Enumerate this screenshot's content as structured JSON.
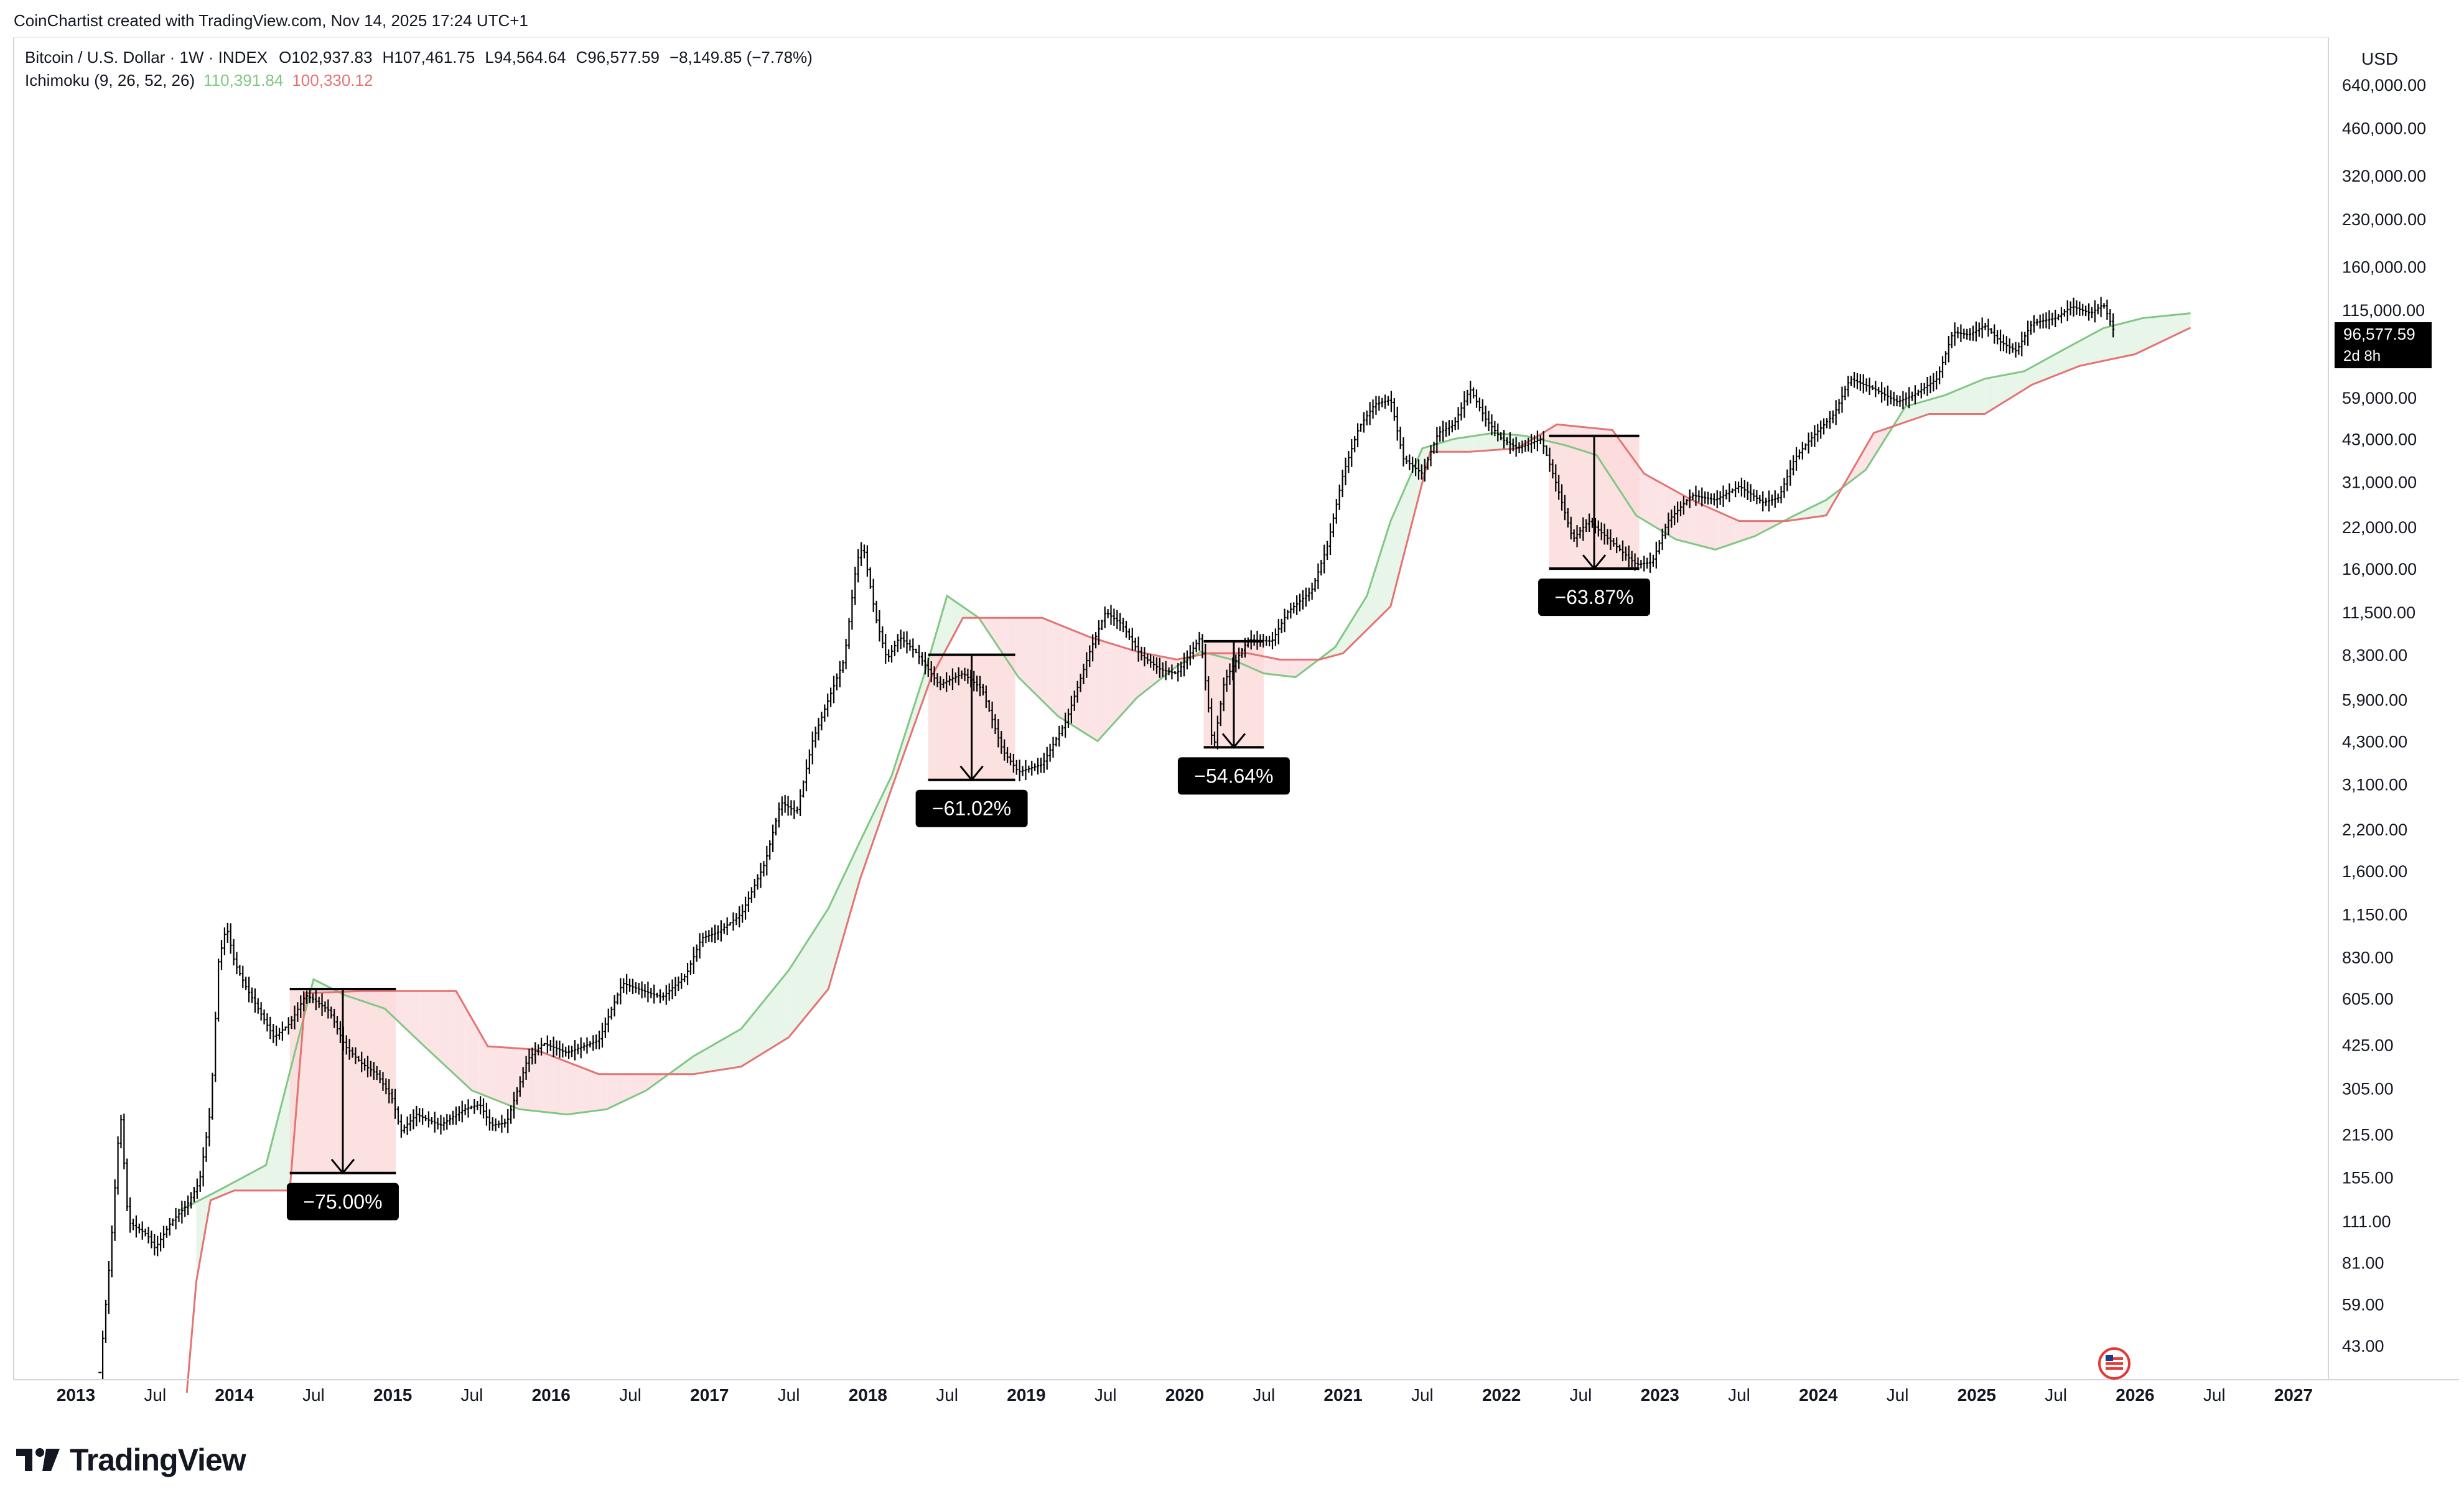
{
  "attribution": "CoinChartist created with TradingView.com, Nov 14, 2025 17:24 UTC+1",
  "brand": {
    "name": "TradingView"
  },
  "legend": {
    "symbol": "Bitcoin / U.S. Dollar · 1W · INDEX",
    "open_label": "O",
    "open": "102,937.83",
    "high_label": "H",
    "high": "107,461.75",
    "low_label": "L",
    "low": "94,564.64",
    "close_label": "C",
    "close": "96,577.59",
    "change": "−8,149.85 (−7.78%)",
    "indicator": "Ichimoku (9, 26, 52, 26)",
    "indicator_value_1": "110,391.84",
    "indicator_value_2": "100,330.12"
  },
  "price_tag": {
    "value": "96,577.59",
    "countdown": "2d 8h"
  },
  "colors": {
    "candle": "#000000",
    "span_a": "#81c784",
    "span_b": "#e57373",
    "cloud_green": "#e8f5e9",
    "cloud_red": "#fce4e6",
    "drawdown_box": "#fbdada",
    "label_bg": "#000000",
    "label_text": "#ffffff",
    "axis_text": "#131722"
  },
  "chart_data": {
    "type": "line",
    "title": "Bitcoin / U.S. Dollar · 1W · INDEX",
    "y_scale": "log",
    "currency": "USD",
    "y_ticks": [
      "640,000.00",
      "460,000.00",
      "320,000.00",
      "230,000.00",
      "160,000.00",
      "115,000.00",
      "59,000.00",
      "43,000.00",
      "31,000.00",
      "22,000.00",
      "16,000.00",
      "11,500.00",
      "8,300.00",
      "5,900.00",
      "4,300.00",
      "3,100.00",
      "2,200.00",
      "1,600.00",
      "1,150.00",
      "830.00",
      "605.00",
      "425.00",
      "305.00",
      "215.00",
      "155.00",
      "111.00",
      "81.00",
      "59.00",
      "43.00"
    ],
    "x_ticks": [
      {
        "label": "2013",
        "year": true,
        "t": 2013.0
      },
      {
        "label": "Jul",
        "year": false,
        "t": 2013.5
      },
      {
        "label": "2014",
        "year": true,
        "t": 2014.0
      },
      {
        "label": "Jul",
        "year": false,
        "t": 2014.5
      },
      {
        "label": "2015",
        "year": true,
        "t": 2015.0
      },
      {
        "label": "Jul",
        "year": false,
        "t": 2015.5
      },
      {
        "label": "2016",
        "year": true,
        "t": 2016.0
      },
      {
        "label": "Jul",
        "year": false,
        "t": 2016.5
      },
      {
        "label": "2017",
        "year": true,
        "t": 2017.0
      },
      {
        "label": "Jul",
        "year": false,
        "t": 2017.5
      },
      {
        "label": "2018",
        "year": true,
        "t": 2018.0
      },
      {
        "label": "Jul",
        "year": false,
        "t": 2018.5
      },
      {
        "label": "2019",
        "year": true,
        "t": 2019.0
      },
      {
        "label": "Jul",
        "year": false,
        "t": 2019.5
      },
      {
        "label": "2020",
        "year": true,
        "t": 2020.0
      },
      {
        "label": "Jul",
        "year": false,
        "t": 2020.5
      },
      {
        "label": "2021",
        "year": true,
        "t": 2021.0
      },
      {
        "label": "Jul",
        "year": false,
        "t": 2021.5
      },
      {
        "label": "2022",
        "year": true,
        "t": 2022.0
      },
      {
        "label": "Jul",
        "year": false,
        "t": 2022.5
      },
      {
        "label": "2023",
        "year": true,
        "t": 2023.0
      },
      {
        "label": "Jul",
        "year": false,
        "t": 2023.5
      },
      {
        "label": "2024",
        "year": true,
        "t": 2024.0
      },
      {
        "label": "Jul",
        "year": false,
        "t": 2024.5
      },
      {
        "label": "2025",
        "year": true,
        "t": 2025.0
      },
      {
        "label": "Jul",
        "year": false,
        "t": 2025.5
      },
      {
        "label": "2026",
        "year": true,
        "t": 2026.0
      },
      {
        "label": "Jul",
        "year": false,
        "t": 2026.5
      },
      {
        "label": "2027",
        "year": true,
        "t": 2027.0
      }
    ],
    "series": [
      {
        "kind": "price",
        "points": [
          [
            2013.15,
            35
          ],
          [
            2013.22,
            90
          ],
          [
            2013.28,
            260
          ],
          [
            2013.33,
            110
          ],
          [
            2013.45,
            100
          ],
          [
            2013.5,
            90
          ],
          [
            2013.6,
            110
          ],
          [
            2013.7,
            125
          ],
          [
            2013.78,
            150
          ],
          [
            2013.85,
            260
          ],
          [
            2013.9,
            800
          ],
          [
            2013.95,
            1050
          ],
          [
            2014.0,
            800
          ],
          [
            2014.08,
            650
          ],
          [
            2014.15,
            560
          ],
          [
            2014.25,
            450
          ],
          [
            2014.35,
            500
          ],
          [
            2014.45,
            620
          ],
          [
            2014.5,
            600
          ],
          [
            2014.6,
            550
          ],
          [
            2014.7,
            420
          ],
          [
            2014.8,
            370
          ],
          [
            2014.9,
            340
          ],
          [
            2015.0,
            280
          ],
          [
            2015.05,
            220
          ],
          [
            2015.15,
            250
          ],
          [
            2015.3,
            230
          ],
          [
            2015.45,
            260
          ],
          [
            2015.55,
            270
          ],
          [
            2015.62,
            230
          ],
          [
            2015.72,
            235
          ],
          [
            2015.85,
            380
          ],
          [
            2015.95,
            430
          ],
          [
            2016.1,
            400
          ],
          [
            2016.3,
            440
          ],
          [
            2016.45,
            680
          ],
          [
            2016.55,
            650
          ],
          [
            2016.7,
            610
          ],
          [
            2016.85,
            720
          ],
          [
            2016.95,
            960
          ],
          [
            2017.05,
            1000
          ],
          [
            2017.2,
            1150
          ],
          [
            2017.35,
            1700
          ],
          [
            2017.45,
            2700
          ],
          [
            2017.55,
            2500
          ],
          [
            2017.65,
            4300
          ],
          [
            2017.75,
            5900
          ],
          [
            2017.85,
            8000
          ],
          [
            2017.93,
            17000
          ],
          [
            2017.97,
            19000
          ],
          [
            2018.05,
            11000
          ],
          [
            2018.12,
            8000
          ],
          [
            2018.2,
            9500
          ],
          [
            2018.3,
            8500
          ],
          [
            2018.45,
            6600
          ],
          [
            2018.6,
            7200
          ],
          [
            2018.72,
            6400
          ],
          [
            2018.85,
            4000
          ],
          [
            2018.95,
            3400
          ],
          [
            2019.1,
            3600
          ],
          [
            2019.25,
            5000
          ],
          [
            2019.4,
            8500
          ],
          [
            2019.5,
            11500
          ],
          [
            2019.6,
            10500
          ],
          [
            2019.72,
            8300
          ],
          [
            2019.85,
            7400
          ],
          [
            2019.95,
            7200
          ],
          [
            2020.1,
            9500
          ],
          [
            2020.18,
            4000
          ],
          [
            2020.25,
            6800
          ],
          [
            2020.4,
            9300
          ],
          [
            2020.55,
            9200
          ],
          [
            2020.65,
            11500
          ],
          [
            2020.8,
            13500
          ],
          [
            2020.9,
            19000
          ],
          [
            2021.0,
            33000
          ],
          [
            2021.1,
            47000
          ],
          [
            2021.2,
            56000
          ],
          [
            2021.3,
            58000
          ],
          [
            2021.38,
            37000
          ],
          [
            2021.5,
            33000
          ],
          [
            2021.6,
            45000
          ],
          [
            2021.7,
            48000
          ],
          [
            2021.8,
            63000
          ],
          [
            2021.9,
            50000
          ],
          [
            2022.0,
            43000
          ],
          [
            2022.1,
            40000
          ],
          [
            2022.25,
            43000
          ],
          [
            2022.35,
            30000
          ],
          [
            2022.45,
            20000
          ],
          [
            2022.55,
            23000
          ],
          [
            2022.7,
            19500
          ],
          [
            2022.85,
            16500
          ],
          [
            2022.95,
            16800
          ],
          [
            2023.05,
            23000
          ],
          [
            2023.2,
            28000
          ],
          [
            2023.35,
            27000
          ],
          [
            2023.5,
            30000
          ],
          [
            2023.65,
            26500
          ],
          [
            2023.75,
            27500
          ],
          [
            2023.85,
            37000
          ],
          [
            2023.95,
            43000
          ],
          [
            2024.1,
            52000
          ],
          [
            2024.2,
            68000
          ],
          [
            2024.35,
            63000
          ],
          [
            2024.5,
            57000
          ],
          [
            2024.6,
            60000
          ],
          [
            2024.75,
            68000
          ],
          [
            2024.85,
            97000
          ],
          [
            2024.95,
            95000
          ],
          [
            2025.05,
            102000
          ],
          [
            2025.15,
            90000
          ],
          [
            2025.25,
            84000
          ],
          [
            2025.35,
            104000
          ],
          [
            2025.5,
            108000
          ],
          [
            2025.6,
            118000
          ],
          [
            2025.72,
            112000
          ],
          [
            2025.8,
            120000
          ],
          [
            2025.87,
            96577.59
          ]
        ]
      },
      {
        "kind": "span_a",
        "name": "Ichimoku Span A",
        "points": [
          [
            2013.65,
            120
          ],
          [
            2013.9,
            140
          ],
          [
            2014.2,
            170
          ],
          [
            2014.5,
            700
          ],
          [
            2014.7,
            620
          ],
          [
            2014.95,
            560
          ],
          [
            2015.2,
            420
          ],
          [
            2015.5,
            300
          ],
          [
            2015.8,
            260
          ],
          [
            2016.1,
            250
          ],
          [
            2016.35,
            260
          ],
          [
            2016.6,
            300
          ],
          [
            2016.9,
            390
          ],
          [
            2017.2,
            480
          ],
          [
            2017.5,
            750
          ],
          [
            2017.75,
            1200
          ],
          [
            2017.95,
            2000
          ],
          [
            2018.15,
            3300
          ],
          [
            2018.35,
            7000
          ],
          [
            2018.5,
            13000
          ],
          [
            2018.7,
            11000
          ],
          [
            2018.95,
            7000
          ],
          [
            2019.2,
            5200
          ],
          [
            2019.45,
            4300
          ],
          [
            2019.7,
            6000
          ],
          [
            2019.95,
            7600
          ],
          [
            2020.1,
            8500
          ],
          [
            2020.3,
            8000
          ],
          [
            2020.5,
            7200
          ],
          [
            2020.7,
            7000
          ],
          [
            2020.95,
            8800
          ],
          [
            2021.15,
            13000
          ],
          [
            2021.3,
            23000
          ],
          [
            2021.5,
            40000
          ],
          [
            2021.7,
            43000
          ],
          [
            2021.95,
            45000
          ],
          [
            2022.15,
            44000
          ],
          [
            2022.4,
            41000
          ],
          [
            2022.6,
            38000
          ],
          [
            2022.85,
            24000
          ],
          [
            2023.1,
            20000
          ],
          [
            2023.35,
            18500
          ],
          [
            2023.6,
            20500
          ],
          [
            2023.85,
            24000
          ],
          [
            2024.05,
            27000
          ],
          [
            2024.3,
            34000
          ],
          [
            2024.55,
            55000
          ],
          [
            2024.8,
            60000
          ],
          [
            2025.05,
            68000
          ],
          [
            2025.3,
            72000
          ],
          [
            2025.55,
            85000
          ],
          [
            2025.8,
            100000
          ],
          [
            2026.05,
            108000
          ],
          [
            2026.35,
            112000
          ]
        ]
      },
      {
        "kind": "span_b",
        "name": "Ichimoku Span B",
        "points": [
          [
            2013.7,
            30
          ],
          [
            2013.76,
            70
          ],
          [
            2013.85,
            130
          ],
          [
            2014.0,
            140
          ],
          [
            2014.35,
            140
          ],
          [
            2014.45,
            630
          ],
          [
            2014.8,
            640
          ],
          [
            2015.1,
            640
          ],
          [
            2015.4,
            640
          ],
          [
            2015.6,
            420
          ],
          [
            2015.9,
            410
          ],
          [
            2016.3,
            340
          ],
          [
            2016.6,
            340
          ],
          [
            2016.9,
            340
          ],
          [
            2017.2,
            360
          ],
          [
            2017.5,
            450
          ],
          [
            2017.75,
            650
          ],
          [
            2017.95,
            1500
          ],
          [
            2018.15,
            3000
          ],
          [
            2018.4,
            7000
          ],
          [
            2018.6,
            11000
          ],
          [
            2019.1,
            11000
          ],
          [
            2019.4,
            9500
          ],
          [
            2019.7,
            8500
          ],
          [
            2019.95,
            8000
          ],
          [
            2020.15,
            8400
          ],
          [
            2020.4,
            8400
          ],
          [
            2020.6,
            8000
          ],
          [
            2020.85,
            8000
          ],
          [
            2021.0,
            8400
          ],
          [
            2021.3,
            12000
          ],
          [
            2021.55,
            39000
          ],
          [
            2021.8,
            39000
          ],
          [
            2022.1,
            40000
          ],
          [
            2022.35,
            48000
          ],
          [
            2022.7,
            46000
          ],
          [
            2022.9,
            33000
          ],
          [
            2023.2,
            27000
          ],
          [
            2023.5,
            23000
          ],
          [
            2023.8,
            23000
          ],
          [
            2024.05,
            24000
          ],
          [
            2024.35,
            45000
          ],
          [
            2024.7,
            52000
          ],
          [
            2025.05,
            52000
          ],
          [
            2025.35,
            65000
          ],
          [
            2025.65,
            75000
          ],
          [
            2026.0,
            82000
          ],
          [
            2026.35,
            100330.12
          ]
        ]
      }
    ],
    "drawdowns": [
      {
        "label": "−75.00%",
        "t_start": 2014.35,
        "t_end": 2015.02,
        "from": 650,
        "to": 160
      },
      {
        "label": "−61.02%",
        "t_start": 2018.38,
        "t_end": 2018.93,
        "from": 8300,
        "to": 3200
      },
      {
        "label": "−54.64%",
        "t_start": 2020.12,
        "t_end": 2020.5,
        "from": 9200,
        "to": 4100
      },
      {
        "label": "−63.87%",
        "t_start": 2022.3,
        "t_end": 2022.87,
        "from": 44000,
        "to": 16000
      }
    ]
  }
}
